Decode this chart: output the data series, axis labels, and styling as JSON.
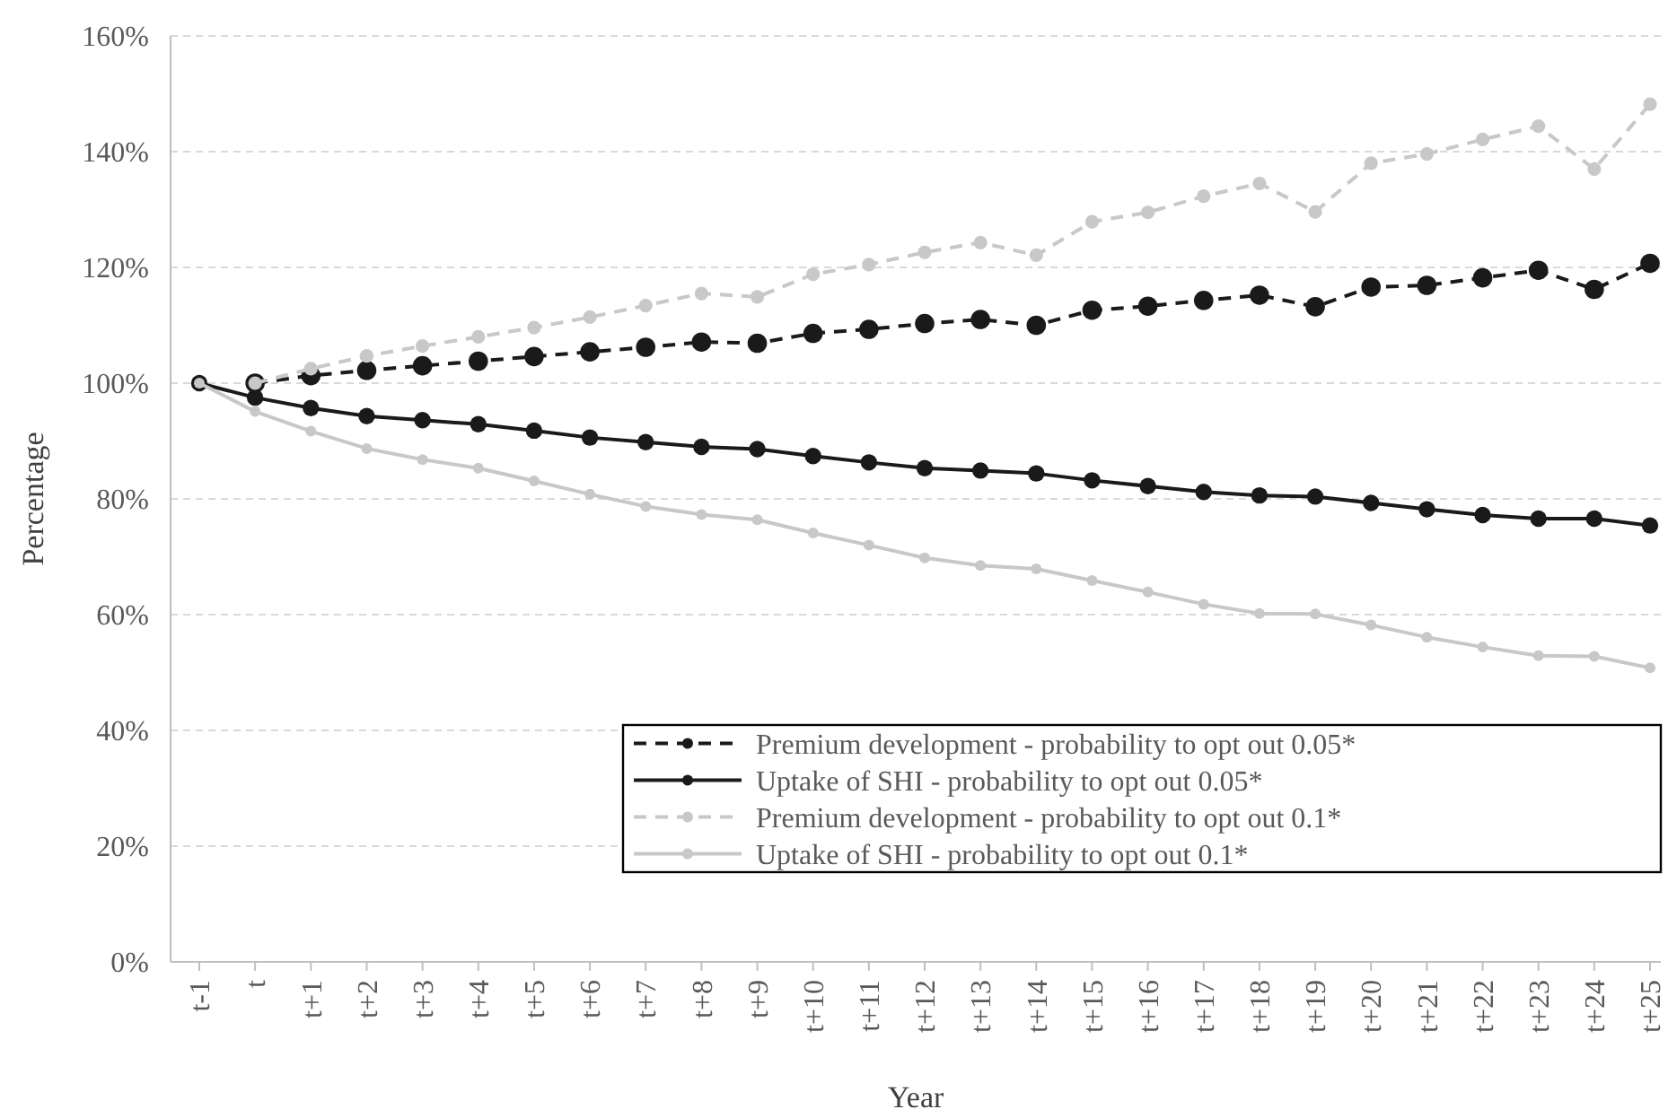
{
  "chart_data": {
    "type": "line",
    "xlabel": "Year",
    "ylabel": "Percentage",
    "categories": [
      "t-1",
      "t",
      "t+1",
      "t+2",
      "t+3",
      "t+4",
      "t+5",
      "t+6",
      "t+7",
      "t+8",
      "t+9",
      "t+10",
      "t+11",
      "t+12",
      "t+13",
      "t+14",
      "t+15",
      "t+16",
      "t+17",
      "t+18",
      "t+19",
      "t+20",
      "t+21",
      "t+22",
      "t+23",
      "t+24",
      "t+25"
    ],
    "ylim": [
      0,
      160
    ],
    "yticks": [
      {
        "value": 0,
        "label": "0%"
      },
      {
        "value": 20,
        "label": "20%"
      },
      {
        "value": 40,
        "label": "40%"
      },
      {
        "value": 60,
        "label": "60%"
      },
      {
        "value": 80,
        "label": "80%"
      },
      {
        "value": 100,
        "label": "100%"
      },
      {
        "value": 120,
        "label": "120%"
      },
      {
        "value": 140,
        "label": "140%"
      },
      {
        "value": 160,
        "label": "160%"
      }
    ],
    "grid": "y",
    "legend": "bottom right",
    "marker": "circle",
    "series": [
      {
        "name": "Premium development - probability to opt out 0.05*",
        "color": "#1a1a1a",
        "line_style": "dashed",
        "values": [
          null,
          100,
          101.3,
          102.2,
          103,
          103.8,
          104.6,
          105.4,
          106.2,
          107.1,
          106.9,
          108.6,
          109.3,
          110.3,
          111,
          110,
          112.6,
          113.3,
          114.3,
          115.2,
          113.2,
          116.6,
          116.9,
          118.2,
          119.5,
          116.2,
          120.7
        ]
      },
      {
        "name": "Uptake of SHI - probability to opt out 0.05*",
        "color": "#1a1a1a",
        "line_style": "solid",
        "values": [
          100,
          97.5,
          95.7,
          94.3,
          93.6,
          92.9,
          91.8,
          90.6,
          89.8,
          89,
          88.6,
          87.4,
          86.3,
          85.3,
          84.9,
          84.4,
          83.2,
          82.2,
          81.2,
          80.6,
          80.4,
          79.3,
          78.2,
          77.2,
          76.6,
          76.6,
          75.4
        ]
      },
      {
        "name": "Premium development - probability to opt out 0.1*",
        "color": "#c8c8c8",
        "line_style": "dashed",
        "values": [
          null,
          100,
          102.5,
          104.7,
          106.4,
          108,
          109.6,
          111.4,
          113.4,
          115.5,
          114.9,
          118.8,
          120.5,
          122.6,
          124.3,
          122.1,
          127.9,
          129.5,
          132.3,
          134.5,
          129.6,
          138,
          139.6,
          142.1,
          144.4,
          137,
          148.2
        ]
      },
      {
        "name": "Uptake of SHI - probability to opt out 0.1*",
        "color": "#c8c8c8",
        "line_style": "solid",
        "values": [
          100,
          95.1,
          91.7,
          88.7,
          86.8,
          85.3,
          83.1,
          80.8,
          78.7,
          77.3,
          76.4,
          74.1,
          72,
          69.8,
          68.5,
          67.9,
          65.9,
          63.9,
          61.8,
          60.2,
          60.1,
          58.2,
          56.1,
          54.4,
          52.9,
          52.8,
          50.8
        ]
      }
    ]
  }
}
